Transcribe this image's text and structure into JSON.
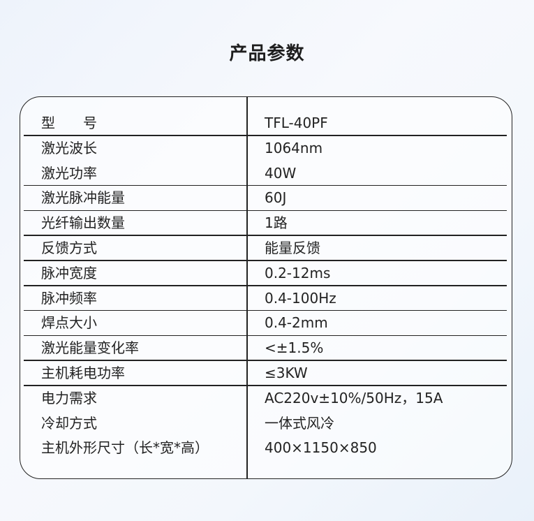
{
  "title": "产品参数",
  "rows": [
    {
      "label": "型　　号",
      "value": "TFL-40PF",
      "line": true
    },
    {
      "label": "激光波长",
      "value": "1064nm",
      "line": false
    },
    {
      "label": "激光功率",
      "value": "40W",
      "line": true
    },
    {
      "label": "激光脉冲能量",
      "value": "60J",
      "line": true
    },
    {
      "label": "光纤输出数量",
      "value": "1路",
      "line": true
    },
    {
      "label": "反馈方式",
      "value": "能量反馈",
      "line": true
    },
    {
      "label": "脉冲宽度",
      "value": "0.2-12ms",
      "line": true
    },
    {
      "label": "脉冲频率",
      "value": "0.4-100Hz",
      "line": true
    },
    {
      "label": "焊点大小",
      "value": "0.4-2mm",
      "line": true
    },
    {
      "label": "激光能量变化率",
      "value": "<±1.5%",
      "line": true
    },
    {
      "label": "主机耗电功率",
      "value": "≤3KW",
      "line": true
    },
    {
      "label": "电力需求",
      "value": "AC220v±10%/50Hz，15A",
      "line": false
    },
    {
      "label": "冷却方式",
      "value": "一体式风冷",
      "line": false
    },
    {
      "label": "主机外形尺寸（长*宽*高）",
      "value": "400×1150×850",
      "line": false
    }
  ]
}
